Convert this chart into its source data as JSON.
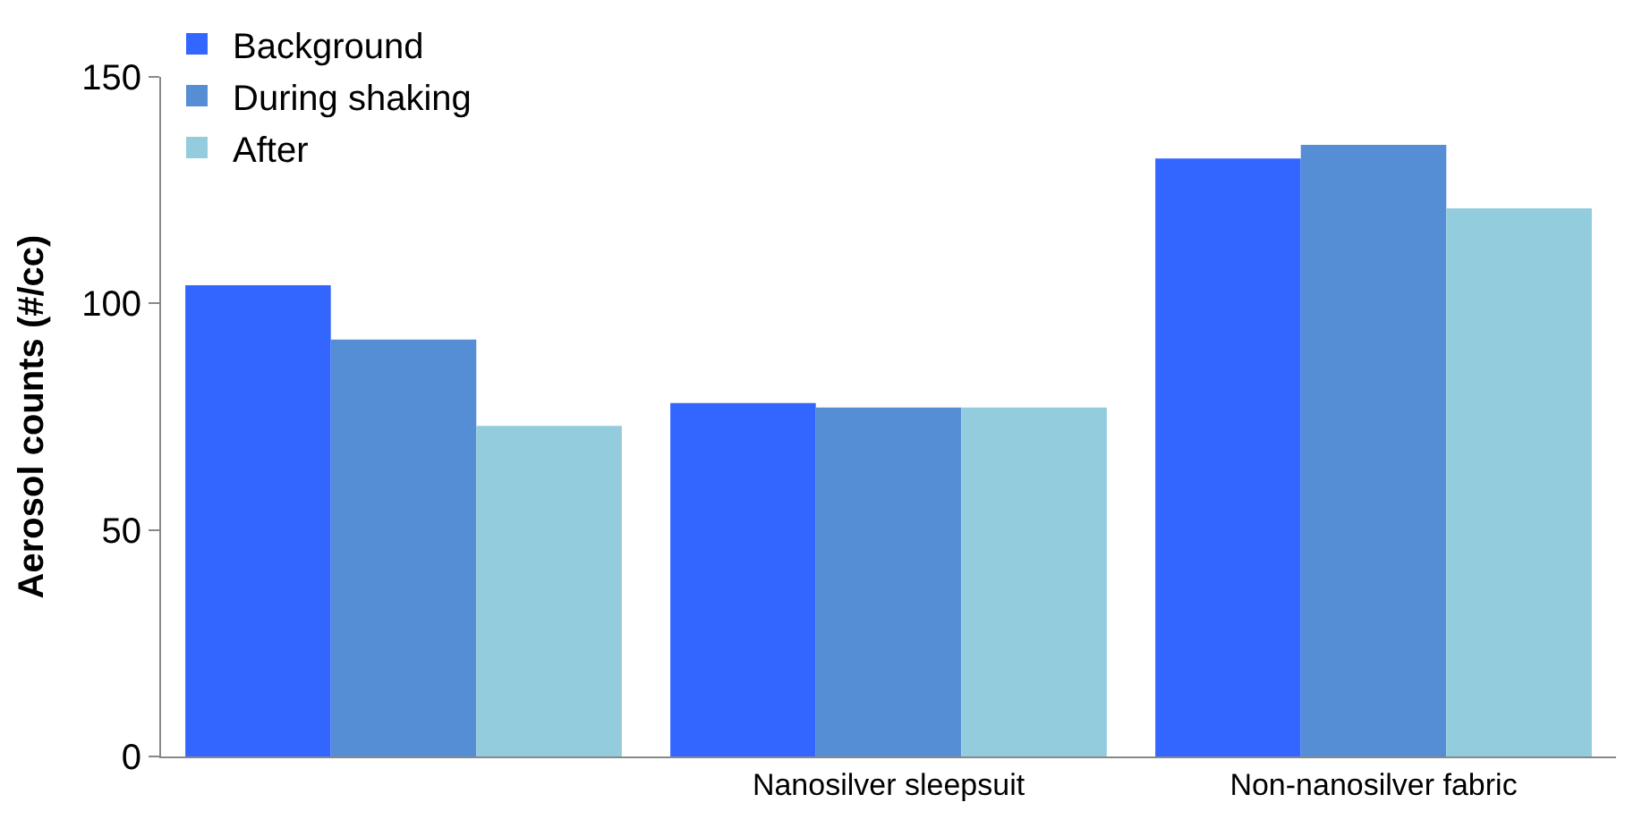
{
  "chart_data": {
    "type": "bar",
    "ylabel": "Aerosol counts (#/cc)",
    "categories": [
      null,
      "Nanosilver sleepsuit",
      "Non-nanosilver fabric"
    ],
    "series": [
      {
        "name": "Background",
        "color": "#3366ff",
        "values": [
          104,
          78,
          132
        ]
      },
      {
        "name": "During shaking",
        "color": "#558ed5",
        "values": [
          92,
          77,
          135
        ]
      },
      {
        "name": "After",
        "color": "#93cddd",
        "values": [
          73,
          77,
          121
        ]
      }
    ],
    "ylim": [
      0,
      150
    ],
    "yticks": [
      0,
      50,
      100,
      150
    ],
    "legend": "top left"
  }
}
